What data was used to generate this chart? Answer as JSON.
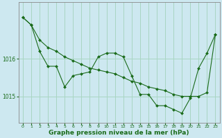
{
  "background_color": "#cde8f0",
  "grid_color": "#a8d5c2",
  "line_color": "#1a6b1a",
  "marker_color": "#1a6b1a",
  "xlabel": "Graphe pression niveau de la mer (hPa)",
  "xlabel_fontsize": 6.5,
  "yticks": [
    1015,
    1016
  ],
  "ylim": [
    1014.3,
    1017.5
  ],
  "xlim": [
    -0.5,
    23.5
  ],
  "xticks": [
    0,
    1,
    2,
    3,
    4,
    5,
    6,
    7,
    8,
    9,
    10,
    11,
    12,
    13,
    14,
    15,
    16,
    17,
    18,
    19,
    20,
    21,
    22,
    23
  ],
  "series1": [
    1017.1,
    1016.9,
    1016.2,
    1015.8,
    1015.8,
    1015.25,
    1015.55,
    1015.6,
    1015.65,
    1016.05,
    1016.15,
    1016.15,
    1016.05,
    1015.55,
    1015.05,
    1015.05,
    1014.75,
    1014.75,
    1014.65,
    1014.55,
    1014.95,
    1015.75,
    1016.15,
    1016.65
  ],
  "series2": [
    1017.1,
    1016.9,
    1016.5,
    1016.3,
    1016.2,
    1016.05,
    1015.95,
    1015.85,
    1015.75,
    1015.7,
    1015.65,
    1015.6,
    1015.5,
    1015.4,
    1015.35,
    1015.25,
    1015.2,
    1015.15,
    1015.05,
    1015.0,
    1015.0,
    1015.0,
    1015.1,
    1016.65
  ],
  "figwidth": 3.2,
  "figheight": 2.0,
  "dpi": 100
}
